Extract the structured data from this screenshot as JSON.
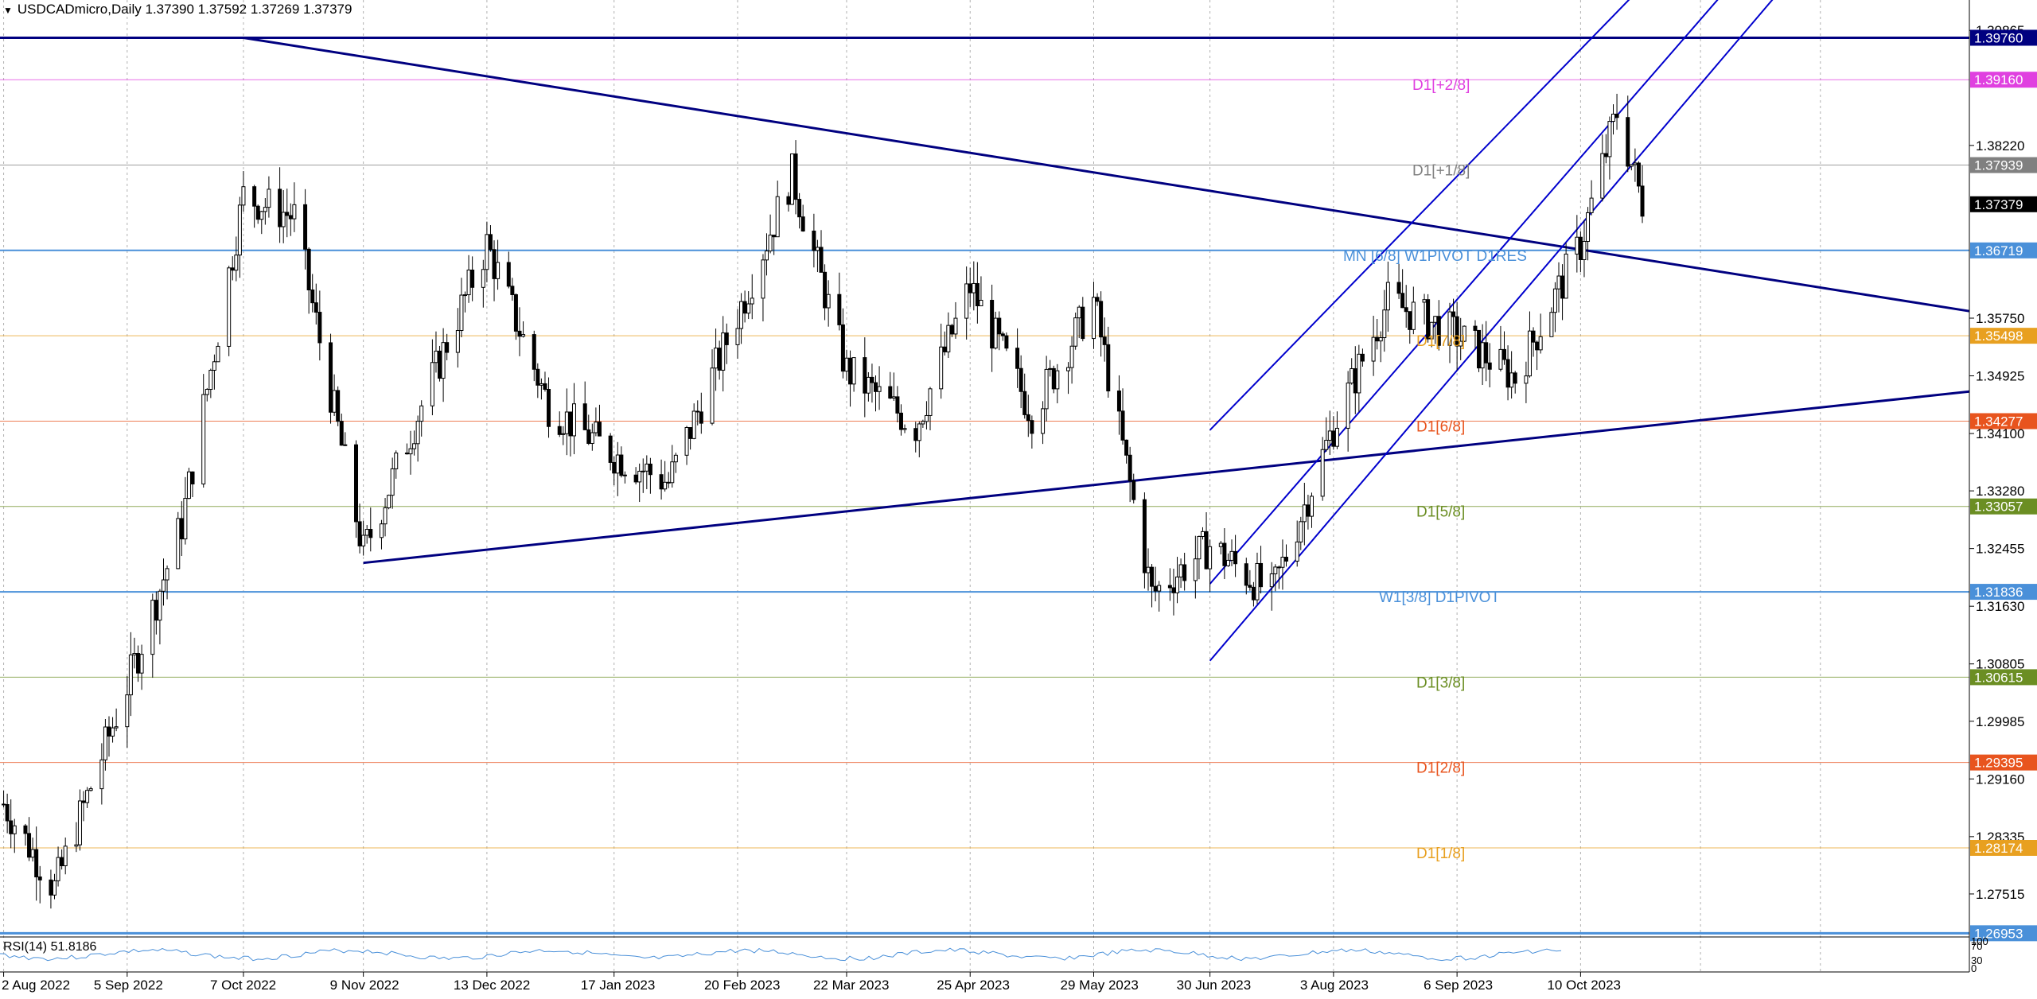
{
  "header": {
    "symbol": "USDCADmicro,Daily",
    "ohlc": "1.37390 1.37592 1.37269 1.37379",
    "menu_icon": "triangle-down-icon"
  },
  "colors": {
    "background": "#ffffff",
    "grid": "#b0b0b0",
    "candle": "#000000",
    "trendline": "#000080",
    "channel": "#0000cd",
    "w1_line": "#4a90d9",
    "magenta": "#e040e0",
    "orange": "#e8a020",
    "red": "#e8541e",
    "olive": "#6b8e23",
    "gray": "#808080"
  },
  "price_axis": {
    "labels": [
      "1.39865",
      "1.38220",
      "1.35750",
      "1.34925",
      "1.34100",
      "1.33280",
      "1.32455",
      "1.31630",
      "1.30805",
      "1.29985",
      "1.29160",
      "1.28335",
      "1.27515"
    ]
  },
  "time_axis": {
    "labels": [
      "2 Aug 2022",
      "5 Sep 2022",
      "7 Oct 2022",
      "9 Nov 2022",
      "13 Dec 2022",
      "17 Jan 2023",
      "20 Feb 2023",
      "22 Mar 2023",
      "25 Apr 2023",
      "29 May 2023",
      "30 Jun 2023",
      "3 Aug 2023",
      "6 Sep 2023",
      "10 Oct 2023"
    ]
  },
  "levels": [
    {
      "name": "D1[+2/8]",
      "price_tag": "1.39160",
      "color": "#e040e0"
    },
    {
      "name": "D1[+1/8]",
      "price_tag": "1.37939",
      "color": "#808080"
    },
    {
      "name": "MN [6/8] W1PIVOT D1RES",
      "price_tag": "1.36719",
      "color": "#4a90d9"
    },
    {
      "name": "D1[7/8]",
      "price_tag": "1.35498",
      "color": "#e8a020"
    },
    {
      "name": "D1[6/8]",
      "price_tag": "1.34277",
      "color": "#e8541e"
    },
    {
      "name": "D1[5/8]",
      "price_tag": "1.33057",
      "color": "#6b8e23"
    },
    {
      "name": "W1[3/8] D1PIVOT",
      "price_tag": "1.31836",
      "color": "#4a90d9"
    },
    {
      "name": "D1[3/8]",
      "price_tag": "1.30615",
      "color": "#6b8e23"
    },
    {
      "name": "D1[2/8]",
      "price_tag": "1.29395",
      "color": "#e8541e"
    },
    {
      "name": "D1[1/8]",
      "price_tag": "1.28174",
      "color": "#e8a020"
    }
  ],
  "extra_tags": [
    {
      "name": "top-line",
      "price_tag": "1.39760",
      "color": "#000080"
    },
    {
      "name": "current-price",
      "price_tag": "1.37379",
      "color": "#000000"
    },
    {
      "name": "bottom-line",
      "price_tag": "1.26953",
      "color": "#4a90d9"
    }
  ],
  "rsi": {
    "label": "RSI(14) 51.8186",
    "scale": [
      "100",
      "70",
      "30",
      "0"
    ]
  },
  "chart_data": {
    "type": "candlestick",
    "symbol": "USDCADmicro",
    "timeframe": "Daily",
    "y_range": [
      1.269,
      1.403
    ],
    "x_range": [
      "2022-08-01",
      "2024-01-25"
    ],
    "grid": true,
    "last_price": 1.37379,
    "series": [
      {
        "name": "close",
        "x": [
          "2022-08-02",
          "2022-08-16",
          "2022-09-05",
          "2022-09-20",
          "2022-10-07",
          "2022-10-21",
          "2022-11-09",
          "2022-11-25",
          "2022-12-13",
          "2022-12-30",
          "2023-01-17",
          "2023-02-01",
          "2023-02-20",
          "2023-03-07",
          "2023-03-22",
          "2023-04-10",
          "2023-04-25",
          "2023-05-12",
          "2023-05-29",
          "2023-06-14",
          "2023-06-30",
          "2023-07-17",
          "2023-08-03",
          "2023-08-18",
          "2023-09-06",
          "2023-09-22",
          "2023-10-10",
          "2023-10-20",
          "2023-10-27"
        ],
        "values": [
          1.288,
          1.276,
          1.305,
          1.328,
          1.375,
          1.372,
          1.324,
          1.345,
          1.368,
          1.345,
          1.338,
          1.334,
          1.358,
          1.378,
          1.35,
          1.342,
          1.362,
          1.344,
          1.36,
          1.318,
          1.325,
          1.318,
          1.342,
          1.36,
          1.355,
          1.349,
          1.368,
          1.387,
          1.374
        ]
      }
    ],
    "lines": [
      {
        "name": "resistance-trendline",
        "from": [
          "2022-10-07",
          1.3976
        ],
        "to": [
          "2024-01-25",
          1.3585
        ]
      },
      {
        "name": "support-trendline",
        "from": [
          "2022-11-09",
          1.3225
        ],
        "to": [
          "2024-01-25",
          1.347
        ]
      },
      {
        "name": "channel-upper",
        "from": [
          "2023-06-30",
          1.3415
        ],
        "to": [
          "2023-10-27",
          1.405
        ]
      },
      {
        "name": "channel-middle",
        "from": [
          "2023-06-30",
          1.3195
        ],
        "to": [
          "2023-11-20",
          1.405
        ]
      },
      {
        "name": "channel-lower",
        "from": [
          "2023-06-30",
          1.3085
        ],
        "to": [
          "2023-12-05",
          1.405
        ]
      }
    ]
  }
}
